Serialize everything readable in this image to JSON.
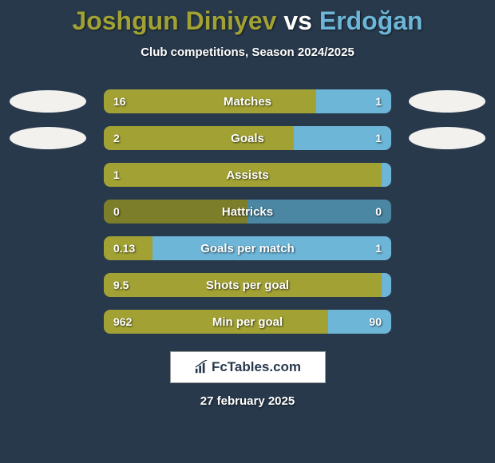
{
  "background_color": "#28394c",
  "oval_color": "#f2f1ee",
  "title": {
    "player1": "Joshgun Diniyev",
    "player1_color": "#a2a234",
    "separator": " vs ",
    "separator_color": "#ffffff",
    "player2": "Erdoğan",
    "player2_color": "#6db6d8",
    "fontsize": 32
  },
  "subtitle": "Club competitions, Season 2024/2025",
  "stats": [
    {
      "label": "Matches",
      "left_val": "16",
      "right_val": "1",
      "left_pct": 74,
      "left_color": "#a2a234",
      "right_color": "#6db6d8",
      "show_left_oval": true,
      "show_right_oval": true
    },
    {
      "label": "Goals",
      "left_val": "2",
      "right_val": "1",
      "left_pct": 66,
      "left_color": "#a2a234",
      "right_color": "#6db6d8",
      "show_left_oval": true,
      "show_right_oval": true
    },
    {
      "label": "Assists",
      "left_val": "1",
      "right_val": "",
      "left_pct": 100,
      "left_color": "#a2a234",
      "right_color": "#6db6d8",
      "show_left_oval": false,
      "show_right_oval": false
    },
    {
      "label": "Hattricks",
      "left_val": "0",
      "right_val": "0",
      "left_pct": 50,
      "left_color": "#7d7e2a",
      "right_color": "#4b87a3",
      "show_left_oval": false,
      "show_right_oval": false
    },
    {
      "label": "Goals per match",
      "left_val": "0.13",
      "right_val": "1",
      "left_pct": 17,
      "left_color": "#a2a234",
      "right_color": "#6db6d8",
      "show_left_oval": false,
      "show_right_oval": false
    },
    {
      "label": "Shots per goal",
      "left_val": "9.5",
      "right_val": "",
      "left_pct": 100,
      "left_color": "#a2a234",
      "right_color": "#6db6d8",
      "show_left_oval": false,
      "show_right_oval": false
    },
    {
      "label": "Min per goal",
      "left_val": "962",
      "right_val": "90",
      "left_pct": 78,
      "left_color": "#a2a234",
      "right_color": "#6db6d8",
      "show_left_oval": false,
      "show_right_oval": false
    }
  ],
  "logo_text": "FcTables.com",
  "date": "27 february 2025"
}
